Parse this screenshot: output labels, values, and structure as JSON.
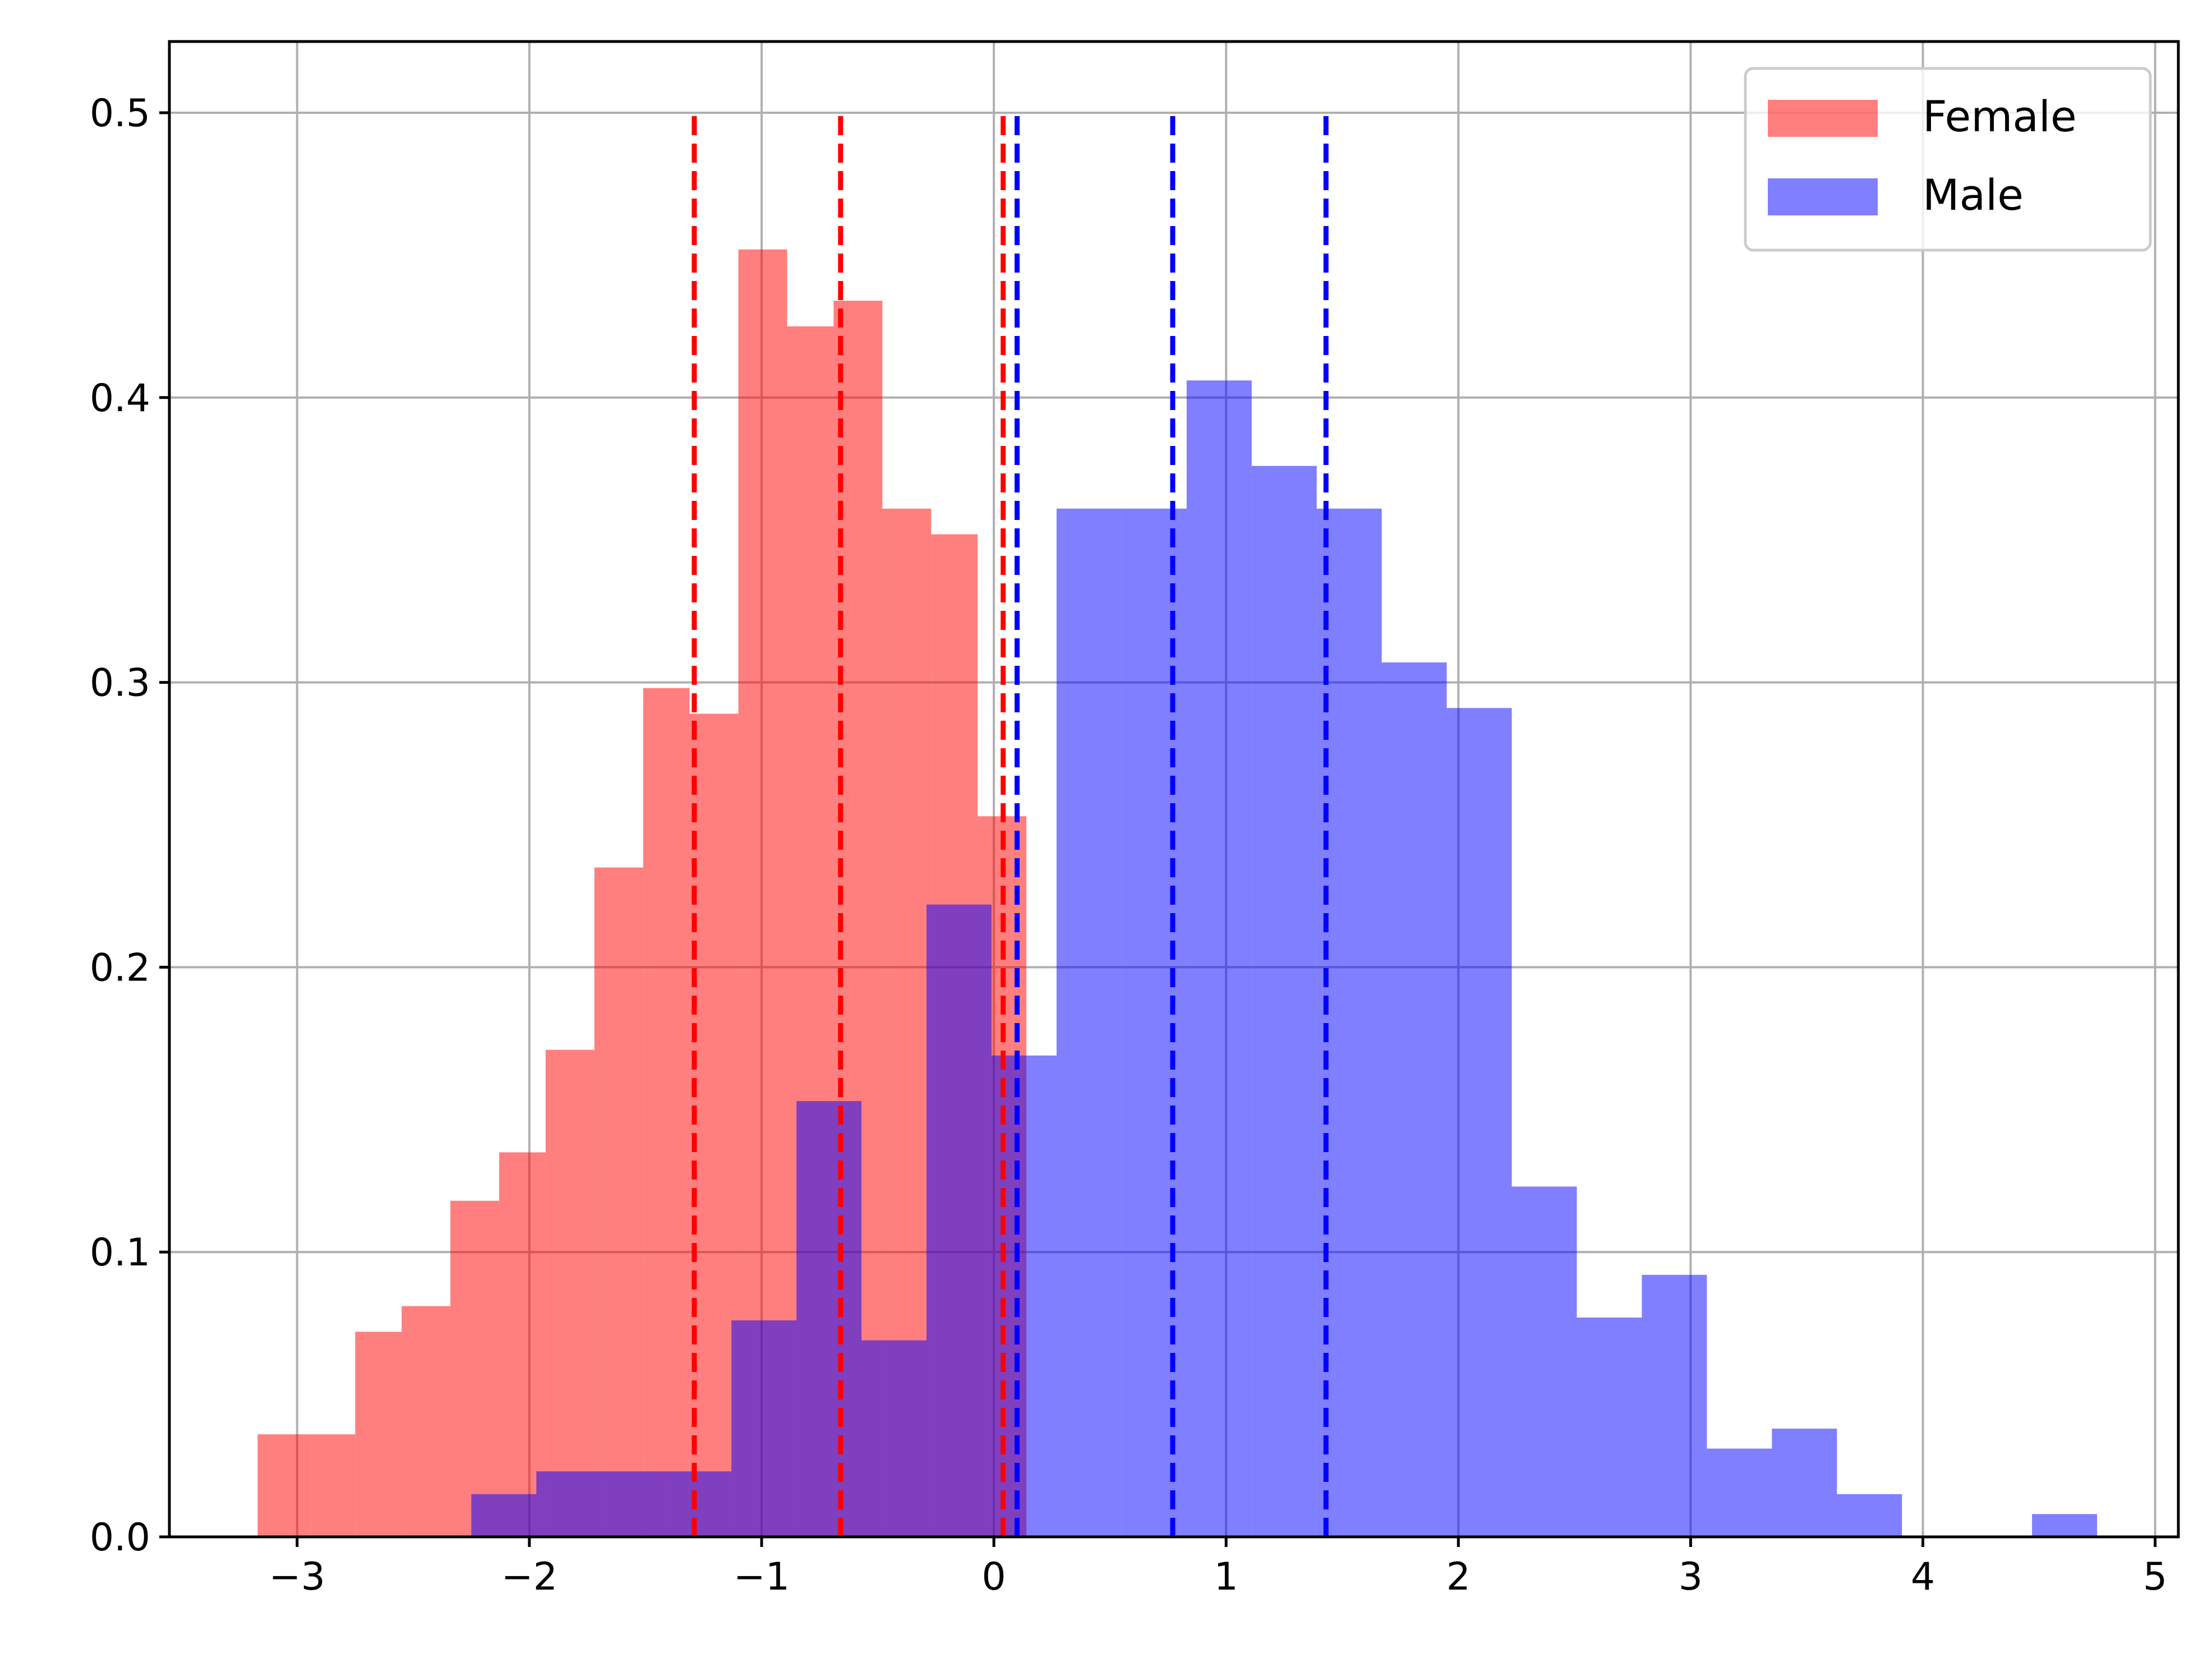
{
  "chart_data": {
    "type": "bar",
    "title": "",
    "xlabel": "",
    "ylabel": "",
    "xlim": [
      -3.55,
      5.1
    ],
    "ylim": [
      0,
      0.525
    ],
    "grid": true,
    "legend_position": "top-right",
    "x_ticks": [
      {
        "value": -3,
        "label": "−3"
      },
      {
        "value": -2,
        "label": "−2"
      },
      {
        "value": -1,
        "label": "−1"
      },
      {
        "value": 0,
        "label": "0"
      },
      {
        "value": 1,
        "label": "1"
      },
      {
        "value": 2,
        "label": "2"
      },
      {
        "value": 3,
        "label": "3"
      },
      {
        "value": 4,
        "label": "4"
      },
      {
        "value": 5,
        "label": "5"
      }
    ],
    "y_ticks": [
      {
        "value": 0.0,
        "label": "0.0"
      },
      {
        "value": 0.1,
        "label": "0.1"
      },
      {
        "value": 0.2,
        "label": "0.2"
      },
      {
        "value": 0.3,
        "label": "0.3"
      },
      {
        "value": 0.4,
        "label": "0.4"
      },
      {
        "value": 0.5,
        "label": "0.5"
      }
    ],
    "series": [
      {
        "name": "Female",
        "color": "#ff0000",
        "opacity": 0.5,
        "bin_edges": [
          -3.17,
          -2.94,
          -2.75,
          -2.55,
          -2.34,
          -2.13,
          -1.93,
          -1.72,
          -1.51,
          -1.31,
          -1.1,
          -0.89,
          -0.69,
          -0.48,
          -0.27,
          -0.07,
          0.14
        ],
        "densities": [
          0.036,
          0.036,
          0.072,
          0.081,
          0.118,
          0.135,
          0.171,
          0.235,
          0.298,
          0.289,
          0.452,
          0.425,
          0.434,
          0.361,
          0.352,
          0.253
        ]
      },
      {
        "name": "Male",
        "color": "#0000ff",
        "opacity": 0.5,
        "bin_edges": [
          -2.25,
          -1.97,
          -1.69,
          -1.41,
          -1.13,
          -0.85,
          -0.57,
          -0.29,
          -0.01,
          0.27,
          0.55,
          0.83,
          1.11,
          1.39,
          1.67,
          1.95,
          2.23,
          2.51,
          2.79,
          3.07,
          3.35,
          3.63,
          3.91,
          4.19,
          4.47,
          4.75
        ],
        "densities": [
          0.015,
          0.023,
          0.023,
          0.023,
          0.076,
          0.153,
          0.069,
          0.222,
          0.169,
          0.361,
          0.361,
          0.406,
          0.376,
          0.361,
          0.307,
          0.291,
          0.123,
          0.077,
          0.092,
          0.031,
          0.038,
          0.015,
          0.0,
          0.0,
          0.008
        ]
      }
    ],
    "reference_lines": [
      {
        "series": "Female",
        "color": "#ff0000",
        "style": "dashed",
        "x": [
          -1.29,
          -0.66,
          0.04
        ],
        "y_top": 0.5
      },
      {
        "series": "Male",
        "color": "#0000ff",
        "style": "dashed",
        "x": [
          0.1,
          0.77,
          1.43
        ],
        "y_top": 0.5
      }
    ],
    "legend": [
      {
        "label": "Female",
        "color": "#ff0000",
        "opacity": 0.5
      },
      {
        "label": "Male",
        "color": "#0000ff",
        "opacity": 0.5
      }
    ]
  }
}
